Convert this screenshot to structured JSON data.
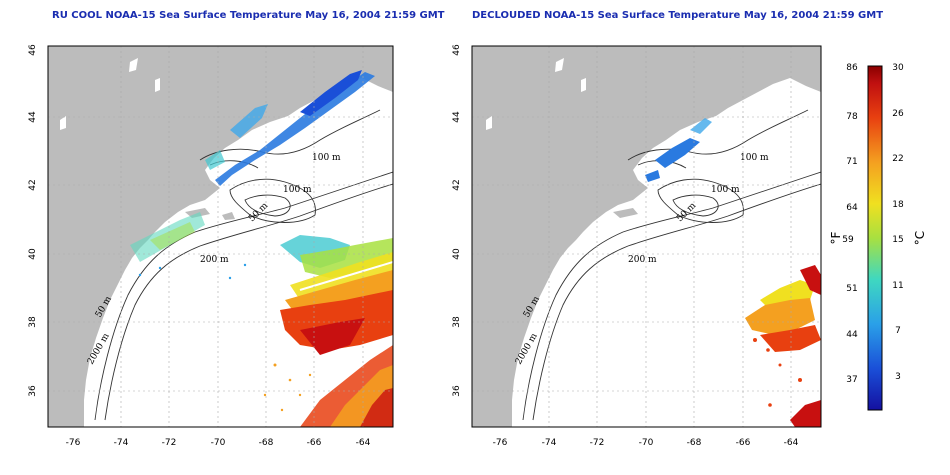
{
  "panels": [
    {
      "id": "left",
      "title": "RU COOL NOAA-15 Sea Surface Temperature May 16, 2004 21:59 GMT"
    },
    {
      "id": "right",
      "title": "DECLOUDED NOAA-15 Sea Surface Temperature May 16, 2004 21:59 GMT"
    }
  ],
  "axes": {
    "lon_ticks": [
      "-76",
      "-74",
      "-72",
      "-70",
      "-68",
      "-66",
      "-64"
    ],
    "lat_ticks": [
      "46",
      "44",
      "42",
      "40",
      "38",
      "36"
    ]
  },
  "contour_labels": {
    "left": [
      "100 m",
      "100 m",
      "50 m",
      "200 m",
      "50 m",
      "2000 m"
    ],
    "right": [
      "100 m",
      "100 m",
      "50 m",
      "200 m",
      "50 m",
      "2000 m"
    ]
  },
  "colorbar": {
    "fahrenheit_unit": "°F",
    "celsius_unit": "°C",
    "fahrenheit_ticks": [
      "86",
      "78",
      "71",
      "64",
      "59",
      "51",
      "44",
      "37"
    ],
    "celsius_ticks": [
      "30",
      "26",
      "22",
      "18",
      "15",
      "11",
      "7",
      "3"
    ],
    "colors": [
      "#1410a0",
      "#1a4fd8",
      "#2aa0e8",
      "#3fd8c0",
      "#a8e040",
      "#f0e020",
      "#f4a020",
      "#e84010",
      "#c01010",
      "#8a0000"
    ]
  },
  "colors": {
    "land": "#bcbcbc",
    "ocean": "#ffffff",
    "title": "#1a2db0",
    "grid": "#aaaaaa"
  }
}
